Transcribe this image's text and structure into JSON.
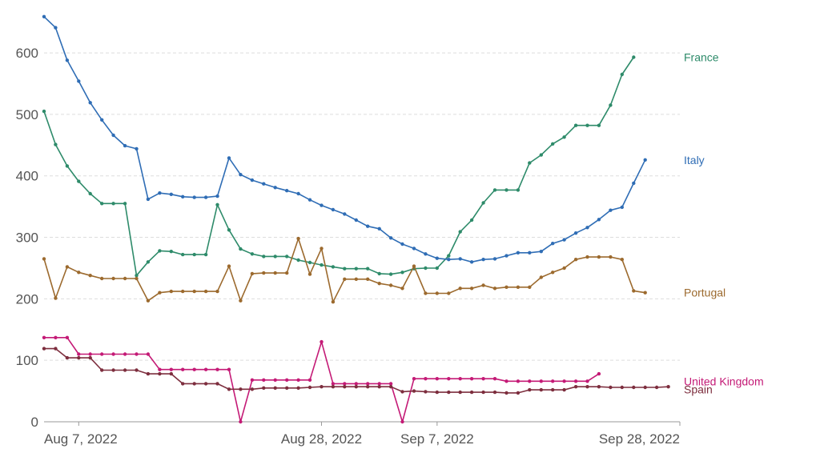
{
  "chart_data": {
    "type": "line",
    "title": "",
    "xlabel": "",
    "ylabel": "",
    "x_start": "2022-08-04",
    "x_end": "2022-09-28",
    "ylim": [
      0,
      660
    ],
    "y_ticks": [
      0,
      100,
      200,
      300,
      400,
      500,
      600
    ],
    "x_ticks": [
      {
        "date": "2022-08-07",
        "label": "Aug 7, 2022"
      },
      {
        "date": "2022-08-28",
        "label": "Aug 28, 2022"
      },
      {
        "date": "2022-09-07",
        "label": "Sep 7, 2022"
      },
      {
        "date": "2022-09-28",
        "label": "Sep 28, 2022"
      }
    ],
    "grid": true,
    "legend": "inline-right",
    "series": [
      {
        "name": "France",
        "color": "#2e8b6a",
        "values": [
          505,
          451,
          416,
          391,
          371,
          355,
          355,
          355,
          238,
          260,
          278,
          277,
          272,
          272,
          272,
          353,
          312,
          281,
          273,
          269,
          269,
          269,
          263,
          259,
          255,
          252,
          249,
          249,
          249,
          241,
          240,
          243,
          249,
          250,
          250,
          270,
          309,
          328,
          356,
          377,
          377,
          377,
          421,
          434,
          452,
          463,
          482,
          482,
          482,
          515,
          565,
          593
        ]
      },
      {
        "name": "Italy",
        "color": "#2f6db5",
        "values": [
          659,
          641,
          588,
          554,
          519,
          491,
          466,
          449,
          444,
          362,
          372,
          370,
          366,
          365,
          365,
          367,
          429,
          402,
          393,
          387,
          381,
          376,
          371,
          361,
          352,
          345,
          338,
          328,
          318,
          314,
          299,
          289,
          282,
          273,
          266,
          264,
          265,
          260,
          264,
          265,
          270,
          275,
          275,
          277,
          290,
          296,
          307,
          316,
          329,
          344,
          349,
          388,
          426
        ]
      },
      {
        "name": "Portugal",
        "color": "#9c6a2e",
        "values": [
          265,
          201,
          252,
          243,
          238,
          233,
          233,
          233,
          233,
          197,
          210,
          212,
          212,
          212,
          212,
          212,
          253,
          197,
          241,
          242,
          242,
          242,
          298,
          240,
          282,
          195,
          232,
          232,
          232,
          225,
          222,
          217,
          253,
          209,
          209,
          209,
          217,
          217,
          222,
          217,
          219,
          219,
          219,
          235,
          243,
          250,
          264,
          268,
          268,
          268,
          264,
          213,
          210
        ]
      },
      {
        "name": "United Kingdom",
        "color": "#c41a76",
        "values": [
          137,
          137,
          137,
          110,
          110,
          110,
          110,
          110,
          110,
          110,
          85,
          85,
          85,
          85,
          85,
          85,
          85,
          0,
          68,
          68,
          68,
          68,
          68,
          68,
          130,
          62,
          62,
          62,
          62,
          62,
          62,
          0,
          70,
          70,
          70,
          70,
          70,
          70,
          70,
          70,
          66,
          66,
          66,
          66,
          66,
          66,
          66,
          66,
          78
        ]
      },
      {
        "name": "Spain",
        "color": "#7d2e3e",
        "values": [
          119,
          119,
          104,
          104,
          104,
          84,
          84,
          84,
          84,
          78,
          78,
          78,
          62,
          62,
          62,
          62,
          53,
          53,
          53,
          55,
          55,
          55,
          55,
          56,
          57,
          57,
          57,
          57,
          57,
          57,
          57,
          49,
          50,
          49,
          48,
          48,
          48,
          48,
          48,
          48,
          47,
          47,
          52,
          52,
          52,
          52,
          57,
          57,
          57,
          56,
          56,
          56,
          56,
          56,
          57
        ]
      }
    ]
  }
}
